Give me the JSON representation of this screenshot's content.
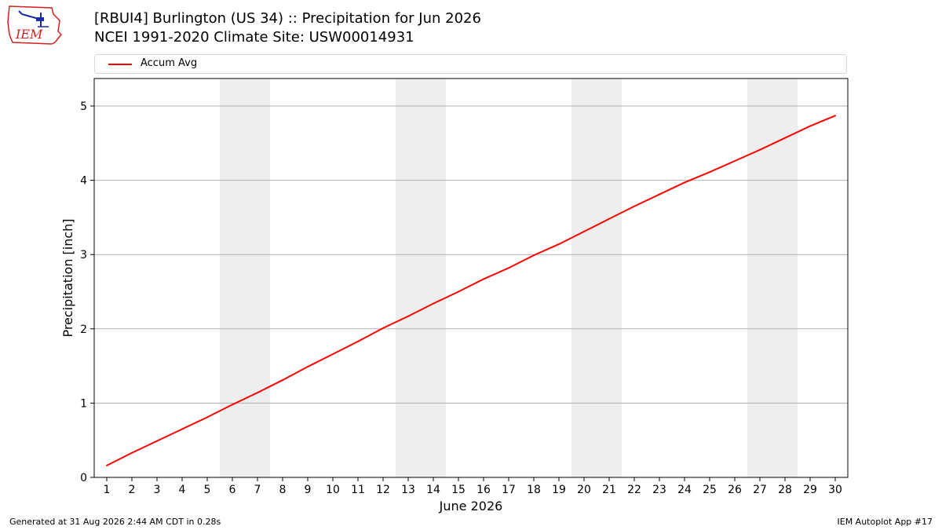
{
  "header": {
    "title_line1": "[RBUI4] Burlington (US 34) :: Precipitation for Jun 2026",
    "title_line2": "NCEI 1991-2020 Climate Site: USW00014931",
    "logo_text": "IEM"
  },
  "footer": {
    "generated": "Generated at 31 Aug 2026 2:44 AM CDT in 0.28s",
    "app": "IEM Autoplot App #17"
  },
  "colors": {
    "line": "#ff0000",
    "weekend_band": "#eeeeee",
    "grid": "#b0b0b0",
    "logo": "#d42020"
  },
  "chart_data": {
    "type": "line",
    "xlabel": "June 2026",
    "ylabel": "Precipitation [inch]",
    "xlim": [
      0.5,
      30.5
    ],
    "ylim": [
      0,
      5.37
    ],
    "yticks": [
      0,
      1,
      2,
      3,
      4,
      5
    ],
    "grid": "horizontal",
    "legend_position": "top",
    "x": [
      1,
      2,
      3,
      4,
      5,
      6,
      7,
      8,
      9,
      10,
      11,
      12,
      13,
      14,
      15,
      16,
      17,
      18,
      19,
      20,
      21,
      22,
      23,
      24,
      25,
      26,
      27,
      28,
      29,
      30
    ],
    "series": [
      {
        "name": "Accum Avg",
        "values": [
          0.16,
          0.33,
          0.49,
          0.65,
          0.81,
          0.98,
          1.14,
          1.31,
          1.49,
          1.66,
          1.83,
          2.01,
          2.17,
          2.34,
          2.5,
          2.67,
          2.82,
          2.99,
          3.14,
          3.31,
          3.48,
          3.65,
          3.81,
          3.97,
          4.11,
          4.26,
          4.41,
          4.57,
          4.73,
          4.87
        ]
      }
    ],
    "weekend_bands": [
      [
        5.5,
        7.5
      ],
      [
        12.5,
        14.5
      ],
      [
        19.5,
        21.5
      ],
      [
        26.5,
        28.5
      ]
    ]
  }
}
